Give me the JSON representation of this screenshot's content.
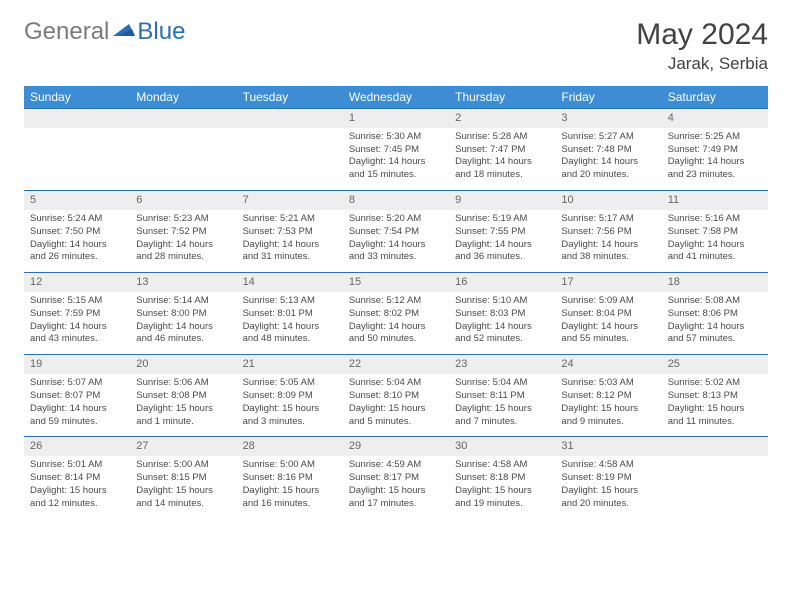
{
  "logo": {
    "text_gray": "General",
    "text_blue": "Blue"
  },
  "title": "May 2024",
  "location": "Jarak, Serbia",
  "colors": {
    "header_bg": "#3d8cd4",
    "header_fg": "#ffffff",
    "border": "#2a6fb5",
    "daynum_bg": "#eeeeee",
    "daynum_fg": "#666666",
    "logo_gray": "#7a7a7a",
    "logo_blue": "#2a6fb5",
    "title_fg": "#424242",
    "body_bg": "#ffffff"
  },
  "day_headers": [
    "Sunday",
    "Monday",
    "Tuesday",
    "Wednesday",
    "Thursday",
    "Friday",
    "Saturday"
  ],
  "weeks": [
    [
      null,
      null,
      null,
      {
        "n": "1",
        "sr": "Sunrise: 5:30 AM",
        "ss": "Sunset: 7:45 PM",
        "dl": "Daylight: 14 hours and 15 minutes."
      },
      {
        "n": "2",
        "sr": "Sunrise: 5:28 AM",
        "ss": "Sunset: 7:47 PM",
        "dl": "Daylight: 14 hours and 18 minutes."
      },
      {
        "n": "3",
        "sr": "Sunrise: 5:27 AM",
        "ss": "Sunset: 7:48 PM",
        "dl": "Daylight: 14 hours and 20 minutes."
      },
      {
        "n": "4",
        "sr": "Sunrise: 5:25 AM",
        "ss": "Sunset: 7:49 PM",
        "dl": "Daylight: 14 hours and 23 minutes."
      }
    ],
    [
      {
        "n": "5",
        "sr": "Sunrise: 5:24 AM",
        "ss": "Sunset: 7:50 PM",
        "dl": "Daylight: 14 hours and 26 minutes."
      },
      {
        "n": "6",
        "sr": "Sunrise: 5:23 AM",
        "ss": "Sunset: 7:52 PM",
        "dl": "Daylight: 14 hours and 28 minutes."
      },
      {
        "n": "7",
        "sr": "Sunrise: 5:21 AM",
        "ss": "Sunset: 7:53 PM",
        "dl": "Daylight: 14 hours and 31 minutes."
      },
      {
        "n": "8",
        "sr": "Sunrise: 5:20 AM",
        "ss": "Sunset: 7:54 PM",
        "dl": "Daylight: 14 hours and 33 minutes."
      },
      {
        "n": "9",
        "sr": "Sunrise: 5:19 AM",
        "ss": "Sunset: 7:55 PM",
        "dl": "Daylight: 14 hours and 36 minutes."
      },
      {
        "n": "10",
        "sr": "Sunrise: 5:17 AM",
        "ss": "Sunset: 7:56 PM",
        "dl": "Daylight: 14 hours and 38 minutes."
      },
      {
        "n": "11",
        "sr": "Sunrise: 5:16 AM",
        "ss": "Sunset: 7:58 PM",
        "dl": "Daylight: 14 hours and 41 minutes."
      }
    ],
    [
      {
        "n": "12",
        "sr": "Sunrise: 5:15 AM",
        "ss": "Sunset: 7:59 PM",
        "dl": "Daylight: 14 hours and 43 minutes."
      },
      {
        "n": "13",
        "sr": "Sunrise: 5:14 AM",
        "ss": "Sunset: 8:00 PM",
        "dl": "Daylight: 14 hours and 46 minutes."
      },
      {
        "n": "14",
        "sr": "Sunrise: 5:13 AM",
        "ss": "Sunset: 8:01 PM",
        "dl": "Daylight: 14 hours and 48 minutes."
      },
      {
        "n": "15",
        "sr": "Sunrise: 5:12 AM",
        "ss": "Sunset: 8:02 PM",
        "dl": "Daylight: 14 hours and 50 minutes."
      },
      {
        "n": "16",
        "sr": "Sunrise: 5:10 AM",
        "ss": "Sunset: 8:03 PM",
        "dl": "Daylight: 14 hours and 52 minutes."
      },
      {
        "n": "17",
        "sr": "Sunrise: 5:09 AM",
        "ss": "Sunset: 8:04 PM",
        "dl": "Daylight: 14 hours and 55 minutes."
      },
      {
        "n": "18",
        "sr": "Sunrise: 5:08 AM",
        "ss": "Sunset: 8:06 PM",
        "dl": "Daylight: 14 hours and 57 minutes."
      }
    ],
    [
      {
        "n": "19",
        "sr": "Sunrise: 5:07 AM",
        "ss": "Sunset: 8:07 PM",
        "dl": "Daylight: 14 hours and 59 minutes."
      },
      {
        "n": "20",
        "sr": "Sunrise: 5:06 AM",
        "ss": "Sunset: 8:08 PM",
        "dl": "Daylight: 15 hours and 1 minute."
      },
      {
        "n": "21",
        "sr": "Sunrise: 5:05 AM",
        "ss": "Sunset: 8:09 PM",
        "dl": "Daylight: 15 hours and 3 minutes."
      },
      {
        "n": "22",
        "sr": "Sunrise: 5:04 AM",
        "ss": "Sunset: 8:10 PM",
        "dl": "Daylight: 15 hours and 5 minutes."
      },
      {
        "n": "23",
        "sr": "Sunrise: 5:04 AM",
        "ss": "Sunset: 8:11 PM",
        "dl": "Daylight: 15 hours and 7 minutes."
      },
      {
        "n": "24",
        "sr": "Sunrise: 5:03 AM",
        "ss": "Sunset: 8:12 PM",
        "dl": "Daylight: 15 hours and 9 minutes."
      },
      {
        "n": "25",
        "sr": "Sunrise: 5:02 AM",
        "ss": "Sunset: 8:13 PM",
        "dl": "Daylight: 15 hours and 11 minutes."
      }
    ],
    [
      {
        "n": "26",
        "sr": "Sunrise: 5:01 AM",
        "ss": "Sunset: 8:14 PM",
        "dl": "Daylight: 15 hours and 12 minutes."
      },
      {
        "n": "27",
        "sr": "Sunrise: 5:00 AM",
        "ss": "Sunset: 8:15 PM",
        "dl": "Daylight: 15 hours and 14 minutes."
      },
      {
        "n": "28",
        "sr": "Sunrise: 5:00 AM",
        "ss": "Sunset: 8:16 PM",
        "dl": "Daylight: 15 hours and 16 minutes."
      },
      {
        "n": "29",
        "sr": "Sunrise: 4:59 AM",
        "ss": "Sunset: 8:17 PM",
        "dl": "Daylight: 15 hours and 17 minutes."
      },
      {
        "n": "30",
        "sr": "Sunrise: 4:58 AM",
        "ss": "Sunset: 8:18 PM",
        "dl": "Daylight: 15 hours and 19 minutes."
      },
      {
        "n": "31",
        "sr": "Sunrise: 4:58 AM",
        "ss": "Sunset: 8:19 PM",
        "dl": "Daylight: 15 hours and 20 minutes."
      },
      null
    ]
  ]
}
